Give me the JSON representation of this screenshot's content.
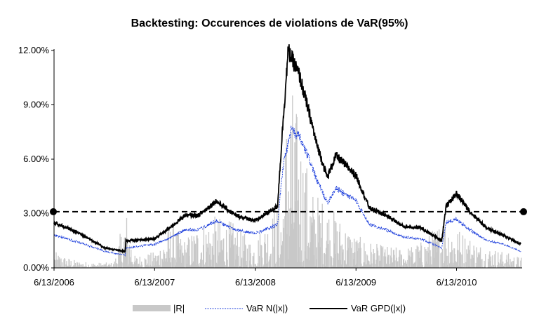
{
  "chart_data": {
    "type": "line",
    "title": "Backtesting: Occurences de violations de VaR(95%)",
    "x_axis": {
      "type": "date",
      "range": [
        "2006-06-13",
        "2011-02-01"
      ],
      "tick_labels": [
        "6/13/2006",
        "6/13/2007",
        "6/13/2008",
        "6/13/2009",
        "6/13/2010"
      ]
    },
    "y_axis": {
      "range": [
        0,
        12
      ],
      "unit": "%",
      "tick_labels": [
        "0.00%",
        "3.00%",
        "6.00%",
        "9.00%",
        "12.00%"
      ],
      "grid": false
    },
    "legend": {
      "position": "bottom",
      "entries": [
        "|R|",
        "VaR N(|x|)",
        "VaR GPD(|x|)"
      ]
    },
    "reference_line": {
      "y": 3.1,
      "style": "dashed",
      "color": "#000000",
      "endpoint_markers": true
    },
    "series": [
      {
        "name": "|R|",
        "kind": "bar",
        "color": "#c8c8c8",
        "points": [
          [
            "2006-06-13",
            0.9
          ],
          [
            "2006-07-15",
            0.7
          ],
          [
            "2006-09-01",
            0.4
          ],
          [
            "2006-11-01",
            0.3
          ],
          [
            "2007-01-15",
            0.3
          ],
          [
            "2007-02-27",
            3.4
          ],
          [
            "2007-04-01",
            0.7
          ],
          [
            "2007-06-13",
            0.9
          ],
          [
            "2007-08-10",
            2.5
          ],
          [
            "2007-10-01",
            1.6
          ],
          [
            "2007-11-20",
            2.6
          ],
          [
            "2008-01-22",
            2.9
          ],
          [
            "2008-03-17",
            2.6
          ],
          [
            "2008-06-01",
            1.5
          ],
          [
            "2008-09-15",
            4.0
          ],
          [
            "2008-10-10",
            11.2
          ],
          [
            "2008-11-20",
            8.0
          ],
          [
            "2008-12-31",
            4.5
          ],
          [
            "2009-03-01",
            3.6
          ],
          [
            "2009-06-13",
            1.8
          ],
          [
            "2009-09-01",
            1.3
          ],
          [
            "2009-12-01",
            1.1
          ],
          [
            "2010-02-05",
            1.5
          ],
          [
            "2010-05-06",
            3.0
          ],
          [
            "2010-06-13",
            2.3
          ],
          [
            "2010-09-01",
            1.4
          ],
          [
            "2010-12-01",
            0.9
          ],
          [
            "2011-02-01",
            0.6
          ]
        ]
      },
      {
        "name": "VaR N(|x|)",
        "kind": "line",
        "style": "dashed",
        "color": "#1a3cdb",
        "points": [
          [
            "2006-06-13",
            1.8
          ],
          [
            "2006-09-15",
            1.4
          ],
          [
            "2006-12-15",
            0.9
          ],
          [
            "2007-02-26",
            0.7
          ],
          [
            "2007-03-01",
            1.1
          ],
          [
            "2007-06-13",
            1.3
          ],
          [
            "2007-08-15",
            1.7
          ],
          [
            "2007-10-01",
            2.1
          ],
          [
            "2007-11-20",
            2.1
          ],
          [
            "2008-01-22",
            2.6
          ],
          [
            "2008-04-01",
            2.1
          ],
          [
            "2008-06-13",
            1.9
          ],
          [
            "2008-09-01",
            2.4
          ],
          [
            "2008-09-20",
            5.5
          ],
          [
            "2008-10-20",
            7.6
          ],
          [
            "2008-11-20",
            7.2
          ],
          [
            "2008-12-31",
            5.8
          ],
          [
            "2009-01-20",
            4.9
          ],
          [
            "2009-03-01",
            3.6
          ],
          [
            "2009-04-01",
            4.4
          ],
          [
            "2009-06-13",
            3.7
          ],
          [
            "2009-08-01",
            2.4
          ],
          [
            "2009-10-01",
            2.1
          ],
          [
            "2009-12-01",
            1.7
          ],
          [
            "2010-02-05",
            1.6
          ],
          [
            "2010-04-20",
            1.1
          ],
          [
            "2010-05-06",
            2.5
          ],
          [
            "2010-06-13",
            2.7
          ],
          [
            "2010-08-01",
            2.1
          ],
          [
            "2010-10-01",
            1.5
          ],
          [
            "2010-12-01",
            1.3
          ],
          [
            "2011-02-01",
            0.9
          ]
        ]
      },
      {
        "name": "VaR GPD(|x|)",
        "kind": "line",
        "style": "solid",
        "color": "#000000",
        "points": [
          [
            "2006-06-13",
            2.5
          ],
          [
            "2006-09-15",
            1.9
          ],
          [
            "2006-12-15",
            1.1
          ],
          [
            "2007-02-26",
            0.9
          ],
          [
            "2007-03-01",
            1.5
          ],
          [
            "2007-06-13",
            1.6
          ],
          [
            "2007-08-15",
            2.3
          ],
          [
            "2007-10-01",
            2.9
          ],
          [
            "2007-11-20",
            2.9
          ],
          [
            "2008-01-22",
            3.7
          ],
          [
            "2008-04-01",
            2.9
          ],
          [
            "2008-06-13",
            2.6
          ],
          [
            "2008-09-01",
            3.4
          ],
          [
            "2008-09-20",
            7.8
          ],
          [
            "2008-10-10",
            12.0
          ],
          [
            "2008-11-20",
            10.6
          ],
          [
            "2008-12-31",
            8.2
          ],
          [
            "2009-01-20",
            6.9
          ],
          [
            "2009-03-01",
            5.0
          ],
          [
            "2009-04-01",
            6.2
          ],
          [
            "2009-06-13",
            5.1
          ],
          [
            "2009-08-01",
            3.3
          ],
          [
            "2009-10-01",
            2.9
          ],
          [
            "2009-12-01",
            2.3
          ],
          [
            "2010-02-05",
            2.2
          ],
          [
            "2010-04-20",
            1.5
          ],
          [
            "2010-05-06",
            3.4
          ],
          [
            "2010-06-13",
            4.1
          ],
          [
            "2010-08-01",
            3.1
          ],
          [
            "2010-10-01",
            2.2
          ],
          [
            "2010-12-01",
            1.8
          ],
          [
            "2011-02-01",
            1.3
          ]
        ]
      }
    ]
  }
}
